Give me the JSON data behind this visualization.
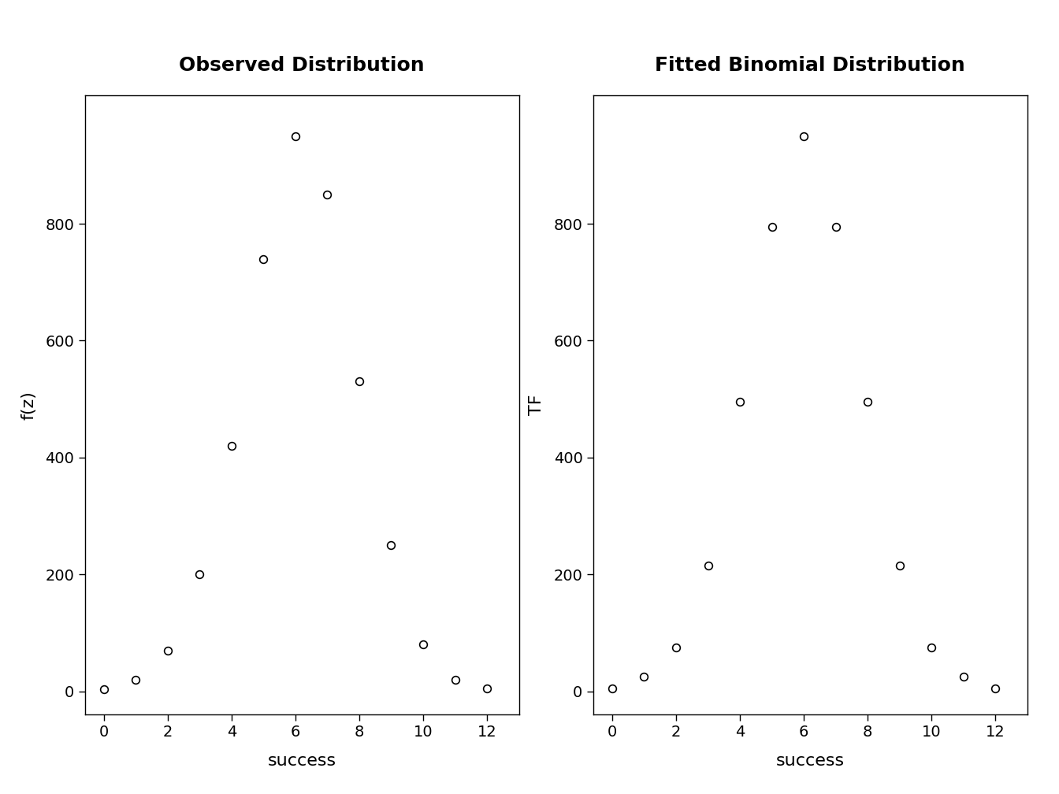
{
  "left_title": "Observed Distribution",
  "right_title": "Fitted Binomial Distribution",
  "left_xlabel": "success",
  "right_xlabel": "success",
  "left_ylabel": "f(z)",
  "right_ylabel": "TF",
  "left_x": [
    0,
    1,
    2,
    3,
    4,
    5,
    6,
    7,
    8,
    9,
    10,
    11,
    12
  ],
  "left_y": [
    3,
    20,
    70,
    200,
    420,
    740,
    950,
    850,
    530,
    250,
    80,
    20,
    5
  ],
  "right_x": [
    0,
    1,
    2,
    3,
    4,
    5,
    6,
    7,
    8,
    9,
    10,
    11,
    12
  ],
  "right_y": [
    5,
    25,
    75,
    215,
    495,
    795,
    950,
    795,
    495,
    215,
    75,
    25,
    5
  ],
  "xlim": [
    -0.6,
    13.0
  ],
  "ylim": [
    -40,
    1020
  ],
  "xticks": [
    0,
    2,
    4,
    6,
    8,
    10,
    12
  ],
  "yticks": [
    0,
    200,
    400,
    600,
    800
  ],
  "marker": "o",
  "marker_size": 7,
  "marker_facecolor": "white",
  "marker_edgecolor": "black",
  "marker_linewidth": 1.2,
  "title_fontsize": 18,
  "axis_label_fontsize": 16,
  "tick_fontsize": 14,
  "background_color": "white",
  "spine_color": "black"
}
